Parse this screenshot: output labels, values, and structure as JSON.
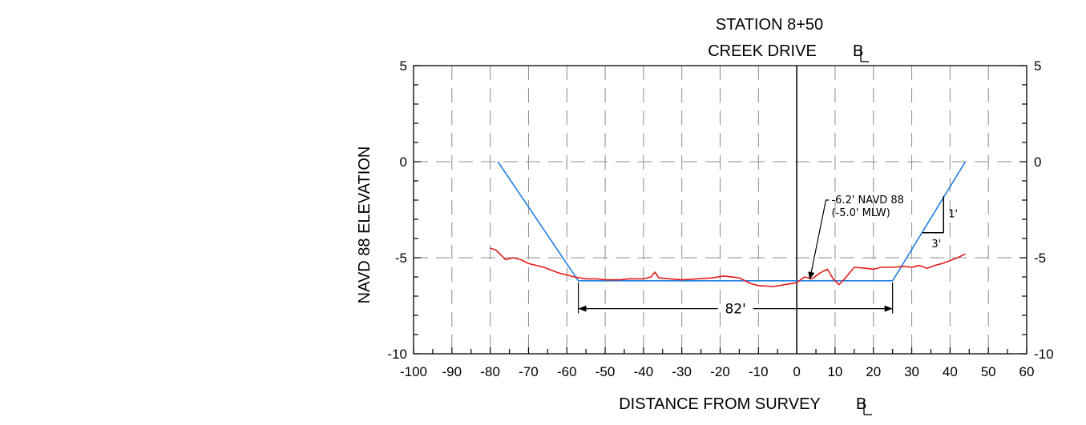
{
  "chart_data": {
    "type": "line",
    "title_line1": "STATION 8+50",
    "title_line2": "CREEK DRIVE",
    "xlabel": "DISTANCE FROM SURVEY",
    "ylabel": "NAVD 88 ELEVATION",
    "xlim": [
      -100,
      60
    ],
    "ylim": [
      -10,
      5
    ],
    "x_ticks": [
      -100,
      -90,
      -80,
      -70,
      -60,
      -50,
      -40,
      -30,
      -20,
      -10,
      0,
      10,
      20,
      30,
      40,
      50,
      60
    ],
    "x_tick_labels": [
      "-100",
      "-90",
      "-80",
      "-70",
      "-60",
      "-50",
      "-40",
      "-30",
      "-20",
      "-10",
      "0",
      "10",
      "20",
      "30",
      "40",
      "50",
      "60"
    ],
    "y_ticks": [
      5,
      0,
      -5,
      -10
    ],
    "y_tick_labels": [
      "5",
      "0",
      "-5",
      "-10"
    ],
    "grid": "dashed",
    "centerline_x": 0,
    "series": [
      {
        "color": "#1f7fe0",
        "x": [
          -78,
          -57,
          25,
          44
        ],
        "y": [
          0,
          -6.2,
          -6.2,
          0
        ]
      },
      {
        "color": "#e31a1c",
        "x": [
          -80,
          -78.5,
          -76,
          -74,
          -72,
          -70,
          -66,
          -62,
          -58,
          -55,
          -52,
          -50,
          -46,
          -44,
          -40,
          -38,
          -37,
          -36,
          -33,
          -30,
          -26,
          -22,
          -19,
          -15,
          -12,
          -10,
          -6,
          -3,
          0,
          2,
          4,
          6,
          8,
          9.5,
          11,
          12.5,
          15,
          18,
          20,
          22,
          25,
          28,
          30,
          32,
          34,
          36,
          38,
          40,
          42,
          44
        ],
        "y": [
          -4.5,
          -4.6,
          -5.1,
          -5.0,
          -5.1,
          -5.3,
          -5.5,
          -5.8,
          -6.0,
          -6.1,
          -6.1,
          -6.15,
          -6.15,
          -6.1,
          -6.1,
          -6.0,
          -5.75,
          -6.05,
          -6.1,
          -6.15,
          -6.1,
          -6.05,
          -5.95,
          -6.05,
          -6.35,
          -6.45,
          -6.5,
          -6.4,
          -6.3,
          -6.0,
          -6.1,
          -5.8,
          -5.6,
          -6.1,
          -6.4,
          -6.1,
          -5.5,
          -5.55,
          -5.6,
          -5.5,
          -5.5,
          -5.45,
          -5.5,
          -5.4,
          -5.55,
          -5.4,
          -5.3,
          -5.15,
          -5.0,
          -4.8
        ]
      }
    ],
    "annotations": {
      "depth_line1": "-6.2' NAVD 88",
      "depth_line2": "(-5.0' MLW)",
      "depth_target": [
        3,
        -6.2
      ],
      "width_label": "82'",
      "width_from": -57,
      "width_to": 25,
      "width_at": -7.65,
      "slope_rise_label": "1'",
      "slope_run_label": "3'"
    }
  }
}
